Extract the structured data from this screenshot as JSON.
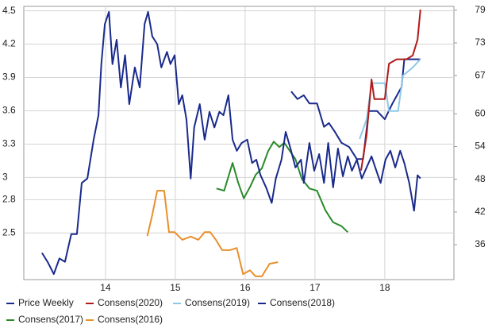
{
  "chart_data": {
    "type": "line",
    "xlim": [
      12.83,
      18.99
    ],
    "xticks": [
      14,
      15,
      16,
      17,
      18
    ],
    "ylim": [
      2.08,
      4.54
    ],
    "yticks": [
      4.5,
      4.2,
      3.9,
      3.6,
      3.3,
      3.0,
      2.8,
      2.5
    ],
    "y2lim": [
      29.6,
      79.7
    ],
    "y2ticks": [
      79,
      73,
      67,
      60,
      54,
      48,
      42,
      36
    ],
    "grid": true,
    "series": [
      {
        "name": "Price Weekly",
        "color": "#1a2a8c",
        "x": [
          13.09,
          13.17,
          13.26,
          13.34,
          13.42,
          13.51,
          13.59,
          13.66,
          13.74,
          13.83,
          13.9,
          13.94,
          13.99,
          14.05,
          14.1,
          14.16,
          14.22,
          14.28,
          14.34,
          14.42,
          14.49,
          14.56,
          14.61,
          14.67,
          14.74,
          14.8,
          14.88,
          14.93,
          14.99,
          15.05,
          15.1,
          15.16,
          15.22,
          15.27,
          15.35,
          15.42,
          15.49,
          15.56,
          15.63,
          15.69,
          15.76,
          15.82,
          15.88,
          15.95,
          16.03,
          16.1,
          16.16,
          16.22,
          16.3,
          16.38,
          16.44,
          16.52,
          16.58,
          16.65,
          16.72,
          16.8,
          16.84,
          16.92,
          16.99,
          17.06,
          17.13,
          17.19,
          17.26,
          17.33,
          17.4,
          17.47,
          17.53,
          17.6,
          17.67,
          17.74,
          17.81,
          17.88,
          17.94,
          18.01,
          18.08,
          18.15,
          18.22,
          18.28,
          18.35,
          18.42,
          18.47,
          18.51
        ],
        "values": [
          2.32,
          2.24,
          2.13,
          2.27,
          2.24,
          2.49,
          2.49,
          2.95,
          2.99,
          3.34,
          3.56,
          4.02,
          4.38,
          4.49,
          4.02,
          4.24,
          3.81,
          4.1,
          3.66,
          3.99,
          3.81,
          4.38,
          4.49,
          4.27,
          4.2,
          3.99,
          4.13,
          4.02,
          4.1,
          3.66,
          3.74,
          3.52,
          2.99,
          3.45,
          3.66,
          3.34,
          3.59,
          3.45,
          3.59,
          3.56,
          3.74,
          3.34,
          3.24,
          3.31,
          3.34,
          3.13,
          3.16,
          3.02,
          2.91,
          2.77,
          2.99,
          3.16,
          3.41,
          3.26,
          3.09,
          3.16,
          2.95,
          3.31,
          3.06,
          3.21,
          2.95,
          3.31,
          2.91,
          3.26,
          3.01,
          3.19,
          3.06,
          3.16,
          2.99,
          3.09,
          3.19,
          3.06,
          2.95,
          3.16,
          3.24,
          3.09,
          3.24,
          3.13,
          2.95,
          2.7,
          3.02,
          2.99
        ]
      },
      {
        "name": "Consens(2020)",
        "color": "#b01a1a",
        "axis": "y2",
        "x": [
          17.66,
          17.74,
          17.81,
          17.85,
          18.0,
          18.06,
          18.17,
          18.31,
          18.4,
          18.47,
          18.51
        ],
        "values": [
          49.6,
          56.1,
          66.3,
          62.7,
          62.7,
          69.2,
          70.0,
          70.0,
          70.7,
          73.6,
          79.1
        ]
      },
      {
        "name": "Consens(2019)",
        "color": "#8ec8e8",
        "axis": "y2",
        "x": [
          17.64,
          17.74,
          17.81,
          18.0,
          18.06,
          18.19,
          18.26,
          18.4,
          18.51
        ],
        "values": [
          55.4,
          59.0,
          65.6,
          65.6,
          60.5,
          60.5,
          67.0,
          68.5,
          70.0
        ]
      },
      {
        "name": "Consens(2018)",
        "color": "#1a2a8c",
        "axis": "y2",
        "x": [
          16.66,
          16.75,
          16.84,
          16.92,
          17.03,
          17.13,
          17.2,
          17.28,
          17.38,
          17.49,
          17.6,
          17.69,
          17.77,
          17.89,
          18.0,
          18.11,
          18.24,
          18.28,
          18.51
        ],
        "values": [
          64.1,
          62.7,
          63.4,
          61.9,
          61.9,
          57.6,
          58.3,
          56.8,
          54.7,
          53.9,
          51.7,
          51.7,
          60.5,
          60.5,
          59.0,
          61.9,
          64.9,
          70.0,
          70.0
        ]
      },
      {
        "name": "Consens(2017)",
        "color": "#2a8a2a",
        "axis": "y2",
        "x": [
          15.59,
          15.7,
          15.82,
          15.9,
          15.98,
          16.07,
          16.15,
          16.24,
          16.33,
          16.41,
          16.49,
          16.56,
          16.64,
          16.72,
          16.81,
          16.92,
          17.03,
          17.15,
          17.26,
          17.38,
          17.47
        ],
        "values": [
          46.3,
          45.9,
          51.0,
          47.4,
          44.5,
          46.6,
          48.8,
          50.0,
          53.2,
          54.9,
          53.9,
          54.7,
          53.2,
          51.7,
          48.1,
          46.3,
          45.9,
          42.3,
          40.1,
          39.4,
          38.3
        ]
      },
      {
        "name": "Consens(2016)",
        "color": "#e8902a",
        "axis": "y2",
        "x": [
          14.6,
          14.67,
          14.74,
          14.84,
          14.91,
          14.99,
          15.1,
          15.22,
          15.33,
          15.42,
          15.5,
          15.58,
          15.67,
          15.78,
          15.88,
          15.97,
          16.07,
          16.15,
          16.24,
          16.35,
          16.47
        ],
        "values": [
          37.6,
          41.5,
          45.9,
          45.9,
          38.3,
          38.3,
          36.9,
          37.5,
          36.9,
          38.3,
          38.3,
          36.9,
          35.0,
          35.0,
          35.4,
          30.6,
          31.3,
          30.2,
          30.2,
          32.5,
          32.8
        ]
      }
    ]
  }
}
